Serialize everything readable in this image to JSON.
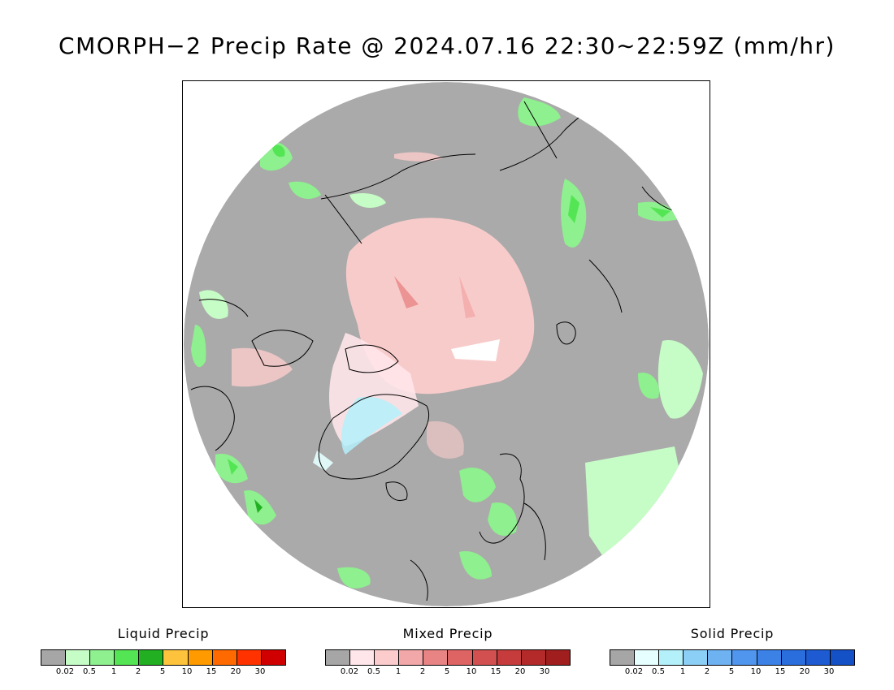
{
  "title": "CMORPH−2 Precip Rate @ 2024.07.16 22:30∼22:59Z (mm/hr)",
  "map": {
    "projection": "north polar stereographic",
    "background_color": "#aaaaaa",
    "outside_color": "#ffffff",
    "coast_color": "#000000"
  },
  "legends": [
    {
      "title": "Liquid Precip",
      "colors": [
        "#a6a6a6",
        "#c6fcc6",
        "#8ef08e",
        "#54e554",
        "#22b022",
        "#fdc33c",
        "#ff9a00",
        "#ff6a00",
        "#ff3200",
        "#d10000"
      ],
      "ticks": [
        "0.02",
        "0.5",
        "1",
        "2",
        "5",
        "10",
        "15",
        "20",
        "30"
      ]
    },
    {
      "title": "Mixed Precip",
      "colors": [
        "#a6a6a6",
        "#ffe6ea",
        "#fccccc",
        "#f2a8a8",
        "#e88484",
        "#de6464",
        "#d25050",
        "#c63c3c",
        "#b42a2a",
        "#a01e1e"
      ],
      "ticks": [
        "0.02",
        "0.5",
        "1",
        "2",
        "5",
        "10",
        "15",
        "20",
        "30"
      ]
    },
    {
      "title": "Solid Precip",
      "colors": [
        "#a6a6a6",
        "#e6ffff",
        "#b4f0fa",
        "#8ccff6",
        "#6eb2f2",
        "#5095ee",
        "#3c82e6",
        "#2a6ede",
        "#1e5ad2",
        "#1450c6"
      ],
      "ticks": [
        "0.02",
        "0.5",
        "1",
        "2",
        "5",
        "10",
        "15",
        "20",
        "30"
      ]
    }
  ]
}
